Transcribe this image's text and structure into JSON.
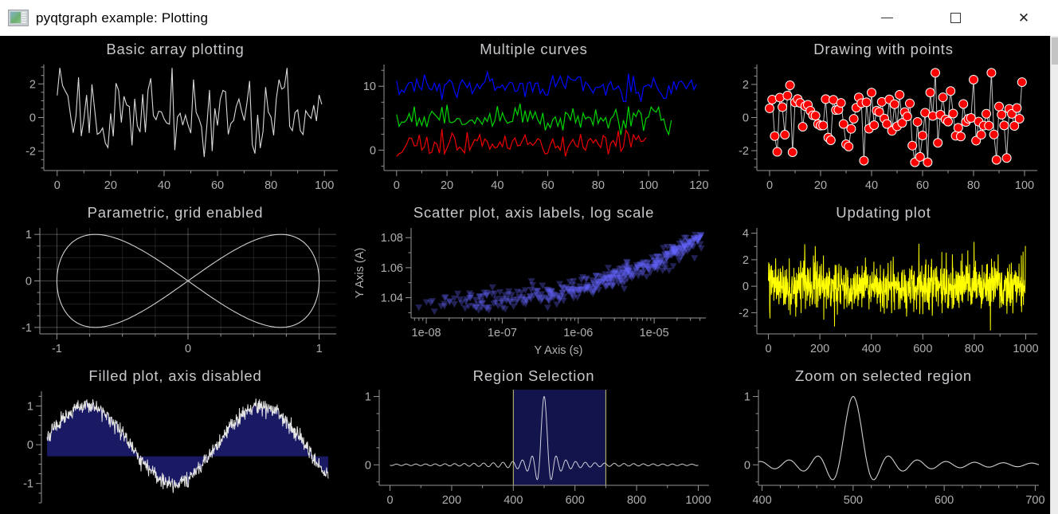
{
  "window": {
    "title": "pyqtgraph example: Plotting"
  },
  "colors": {
    "background": "#000000",
    "titlebar_bg": "#ffffff",
    "plot_title": "#c9c9cd",
    "axis_line": "#949494",
    "tick_label": "#b0b0b0",
    "red_curve": "#ff0000",
    "green_curve": "#00d400",
    "blue_curve": "#0000ff",
    "yellow_curve": "#ffff00",
    "fill_navy": "rgba(50,50,200,0.5)",
    "region_fill": "rgba(45,45,170,0.45)",
    "region_edge": "rgba(220,220,130,0.9)"
  },
  "chart_data": [
    {
      "id": "basic-array-plotting",
      "type": "line",
      "title": "Basic array plotting",
      "xlim": [
        -5,
        105
      ],
      "ylim": [
        -3.15,
        3.15
      ],
      "x_ticks": [
        0,
        20,
        40,
        60,
        80,
        100
      ],
      "x_minor_step": 10,
      "y_ticks": [
        -2,
        0,
        2
      ],
      "y_minor_step": 0.5,
      "show_bottom_axis": true,
      "grid": false,
      "margins": {
        "ml": 55,
        "mr": 16,
        "mt": 6,
        "mb": 36
      },
      "series": [
        {
          "kind": "noise",
          "n": 100,
          "x0": 0,
          "dx": 1,
          "offset": 0,
          "sd": 1.1,
          "clamp": 2.95,
          "seed": 11,
          "color": "#d8d8d8",
          "width": 1.1
        }
      ]
    },
    {
      "id": "multiple-curves",
      "type": "line",
      "title": "Multiple curves",
      "xlim": [
        -5,
        124
      ],
      "ylim": [
        -3.2,
        13.4
      ],
      "x_ticks": [
        0,
        20,
        40,
        60,
        80,
        100,
        120
      ],
      "x_minor_step": 10,
      "y_ticks": [
        0,
        10
      ],
      "y_minor_step": 2.5,
      "show_bottom_axis": true,
      "grid": false,
      "margins": {
        "ml": 42,
        "mr": 10,
        "mt": 6,
        "mb": 36
      },
      "series": [
        {
          "kind": "noise",
          "name": "Red curve",
          "n": 100,
          "x0": 0,
          "dx": 1,
          "offset": 1,
          "sd": 0.95,
          "clamp": 2.6,
          "seed": 21,
          "color": "#ee0000",
          "width": 1.2
        },
        {
          "kind": "noise",
          "name": "Green curve",
          "n": 110,
          "x0": 0,
          "dx": 1,
          "offset": 5,
          "sd": 0.95,
          "clamp": 2.6,
          "seed": 22,
          "color": "#00d400",
          "width": 1.2
        },
        {
          "kind": "noise",
          "name": "Blue curve",
          "n": 120,
          "x0": 0,
          "dx": 1,
          "offset": 10,
          "sd": 0.9,
          "clamp": 2.4,
          "seed": 23,
          "color": "#0008ff",
          "width": 1.2
        }
      ]
    },
    {
      "id": "drawing-with-points",
      "type": "scatter-line",
      "title": "Drawing with points",
      "xlim": [
        -5,
        105
      ],
      "ylim": [
        -3.2,
        3.2
      ],
      "x_ticks": [
        0,
        20,
        40,
        60,
        80,
        100
      ],
      "x_minor_step": 10,
      "y_ticks": [
        -2,
        0,
        2
      ],
      "y_minor_step": 0.5,
      "show_bottom_axis": true,
      "grid": false,
      "margins": {
        "ml": 50,
        "mr": 16,
        "mt": 6,
        "mb": 36
      },
      "series": [
        {
          "kind": "noise",
          "n": 100,
          "x0": 0,
          "dx": 1,
          "offset": 0,
          "sd": 1.15,
          "clamp": 2.7,
          "seed": 31,
          "color": "#c0c0c0",
          "width": 1,
          "marker": "circle",
          "marker_size": 5.5,
          "marker_fill": "#ff0000",
          "marker_stroke": "#ffffff"
        }
      ]
    },
    {
      "id": "parametric-grid-enabled",
      "type": "line",
      "title": "Parametric, grid enabled",
      "xlim": [
        -1.13,
        1.13
      ],
      "ylim": [
        -1.14,
        1.14
      ],
      "x_ticks": [
        -1,
        0,
        1
      ],
      "x_minor_step": 0.25,
      "y_ticks": [
        -1,
        0,
        1
      ],
      "y_minor_step": 0.25,
      "show_bottom_axis": true,
      "grid": true,
      "margins": {
        "ml": 50,
        "mr": 18,
        "mt": 6,
        "mb": 36
      },
      "series": [
        {
          "kind": "lissajous",
          "n": 400,
          "color": "#d0d0d0",
          "width": 1.1
        }
      ]
    },
    {
      "id": "scatter-log-scale",
      "type": "scatter",
      "title": "Scatter plot, axis labels, log scale",
      "x_label": "Y Axis (s)",
      "y_label": "Y Axis (A)",
      "xlim": [
        -8.2,
        -4.32
      ],
      "ylim": [
        1.0265,
        1.0865
      ],
      "x_log": true,
      "x_ticks": [
        -8,
        -7,
        -6,
        -5
      ],
      "x_tick_labels": [
        "1e-08",
        "1e-07",
        "1e-06",
        "1e-05"
      ],
      "y_ticks": [
        1.04,
        1.06,
        1.08
      ],
      "y_minor_step": 0.01,
      "show_bottom_axis": true,
      "grid": false,
      "margins": {
        "ml": 76,
        "mr": 14,
        "mt": 6,
        "mb": 56
      },
      "series": [
        {
          "kind": "log_scatter",
          "n": 420,
          "seed": 51,
          "marker": "triangle-down",
          "marker_size": 9,
          "marker_fill": "rgba(100,100,255,0.33)"
        }
      ]
    },
    {
      "id": "updating-plot",
      "type": "line",
      "title": "Updating plot",
      "xlim": [
        -45,
        1045
      ],
      "ylim": [
        -3.6,
        4.4
      ],
      "x_ticks": [
        0,
        200,
        400,
        600,
        800,
        1000
      ],
      "x_minor_step": 100,
      "y_ticks": [
        -2,
        0,
        2,
        4
      ],
      "y_minor_step": 1,
      "show_bottom_axis": true,
      "grid": false,
      "margins": {
        "ml": 50,
        "mr": 16,
        "mt": 6,
        "mb": 36
      },
      "series": [
        {
          "kind": "noise",
          "n": 1000,
          "x0": 0,
          "dx": 1,
          "offset": 0,
          "sd": 1.0,
          "clamp": 3.35,
          "seed": 61,
          "color": "#ffff00",
          "width": 1
        }
      ]
    },
    {
      "id": "filled-plot-axis-disabled",
      "type": "line",
      "title": "Filled plot, axis disabled",
      "xlim": [
        -0.02,
        1.04
      ],
      "ylim": [
        -1.5,
        1.38
      ],
      "x_ticks": [],
      "y_ticks": [
        -1,
        0,
        1
      ],
      "y_minor_step": 0.25,
      "show_bottom_axis": false,
      "grid": false,
      "margins": {
        "ml": 52,
        "mr": 14,
        "mt": 6,
        "mb": 14
      },
      "series": [
        {
          "kind": "noisy_sine",
          "n": 700,
          "omega": 10.13,
          "phase": 0.15,
          "noise_sd": 0.1,
          "seed": 71,
          "color": "#e4e4e4",
          "width": 1,
          "fill_level": -0.3,
          "fill_color": "rgba(50,50,200,0.5)"
        }
      ]
    },
    {
      "id": "region-selection",
      "type": "line",
      "title": "Region Selection",
      "xlim": [
        -35,
        1035
      ],
      "ylim": [
        -0.3,
        1.1
      ],
      "x_ticks": [
        0,
        200,
        400,
        600,
        800,
        1000
      ],
      "x_minor_step": 100,
      "y_ticks": [
        0,
        1
      ],
      "y_minor_step": 0.25,
      "show_bottom_axis": true,
      "grid": false,
      "margins": {
        "ml": 36,
        "mr": 10,
        "mt": 4,
        "mb": 36
      },
      "region": {
        "from": 400,
        "to": 700,
        "fill": "rgba(45,45,170,0.45)",
        "edge": "rgba(220,220,130,0.9)"
      },
      "series": [
        {
          "kind": "sinc",
          "n": 1000,
          "x_start": 0,
          "x_end": 1000,
          "center": 500,
          "scale": 5,
          "color": "rgba(255,255,255,0.8)",
          "width": 1
        }
      ]
    },
    {
      "id": "zoom-on-selected-region",
      "type": "line",
      "title": "Zoom on selected region",
      "xlim": [
        396,
        704
      ],
      "ylim": [
        -0.3,
        1.1
      ],
      "x_ticks": [
        400,
        500,
        600,
        700
      ],
      "x_minor_step": 20,
      "y_ticks": [
        0,
        1
      ],
      "y_minor_step": 0.25,
      "show_bottom_axis": true,
      "grid": false,
      "margins": {
        "ml": 52,
        "mr": 14,
        "mt": 4,
        "mb": 36
      },
      "series": [
        {
          "kind": "sinc",
          "n": 600,
          "x_start": 396,
          "x_end": 704,
          "center": 500,
          "scale": 5,
          "color": "#d0d0d0",
          "width": 1.1
        }
      ]
    }
  ]
}
